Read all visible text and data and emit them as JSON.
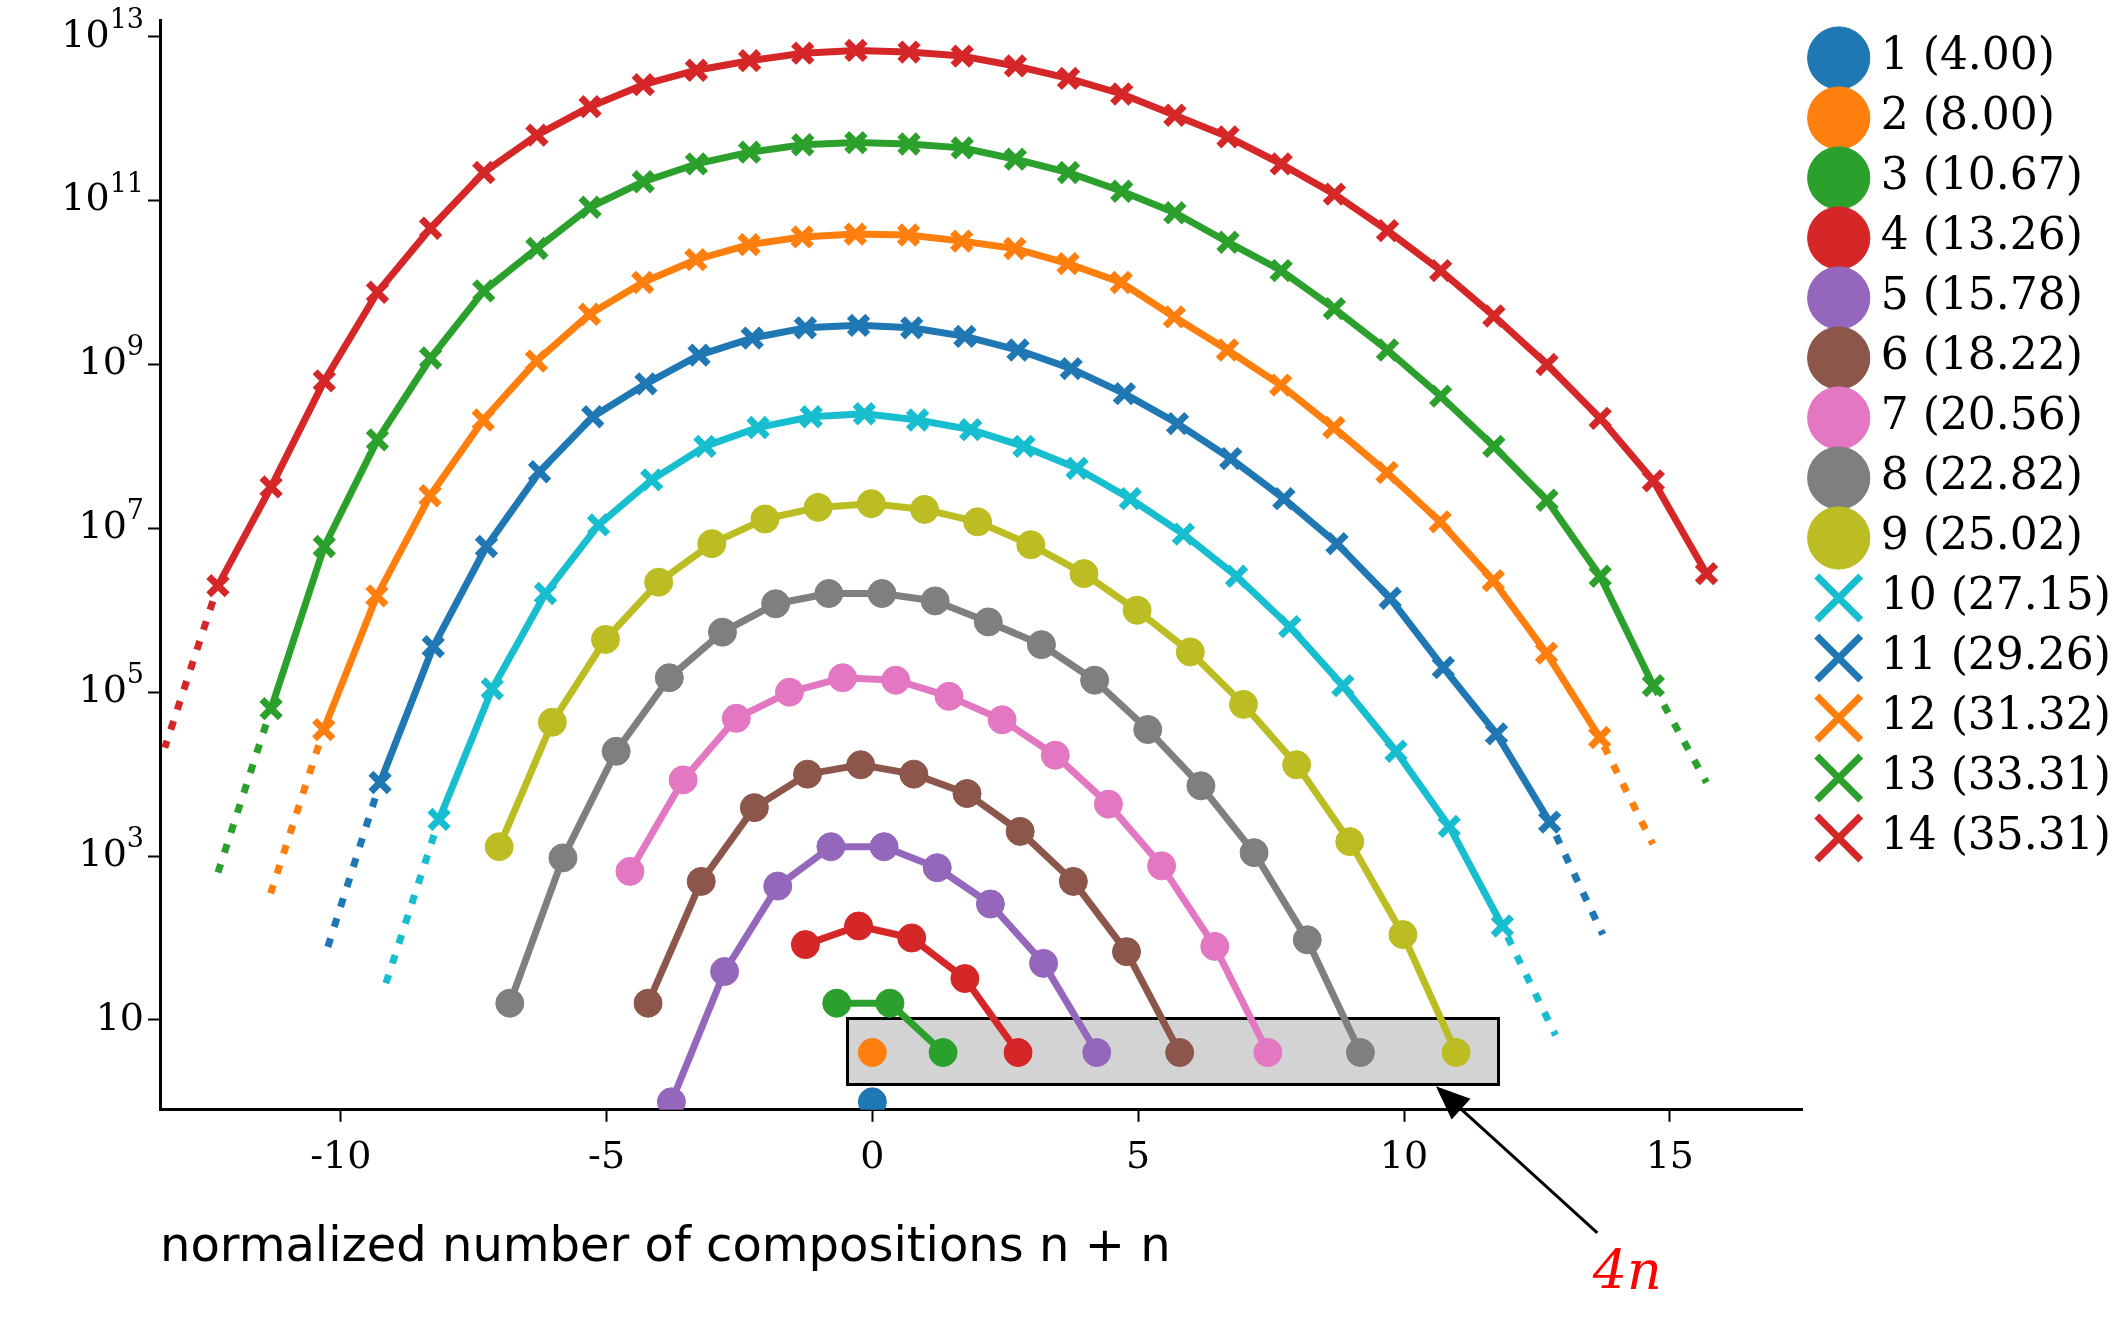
{
  "chart_data": {
    "type": "line",
    "xlabel": "normalized number of compositions n + n",
    "log": "y",
    "legend": "right",
    "line_style": "solid",
    "xlim": [
      -13.4,
      17.5
    ],
    "xticks": [
      -10,
      -5,
      0,
      5,
      10,
      15
    ],
    "ylim": [
      0.8,
      16000000000000.0
    ],
    "yticks": [
      {
        "value": 10,
        "label": "10"
      },
      {
        "value": 1000,
        "label": "10$^{3}$"
      },
      {
        "value": 100000.0,
        "label": "10$^{5}$"
      },
      {
        "value": 10000000.0,
        "label": "10$^{7}$"
      },
      {
        "value": 1000000000.0,
        "label": "10$^{9}$"
      },
      {
        "value": 100000000000.0,
        "label": "10$^{11}$"
      },
      {
        "value": 10000000000000.0,
        "label": "10$^{13}$"
      }
    ],
    "annotations": [
      "4n"
    ],
    "series": [
      {
        "name": "1 (4.00)",
        "color": "#1f77b4",
        "marker": "circle",
        "x": [
          0
        ],
        "values": [
          1
        ]
      },
      {
        "name": "2 (8.00)",
        "color": "#ff7f0e",
        "marker": "circle",
        "x": [
          0
        ],
        "values": [
          4
        ]
      },
      {
        "name": "3 (10.67)",
        "color": "#2ca02c",
        "marker": "circle",
        "x": [
          -0.67,
          0.33,
          1.33
        ],
        "values": [
          16,
          16,
          4
        ]
      },
      {
        "name": "4 (13.26)",
        "color": "#d62728",
        "marker": "circle",
        "x": [
          -1.26,
          -0.26,
          0.74,
          1.74,
          2.74
        ],
        "values": [
          83,
          140,
          100,
          32,
          4
        ]
      },
      {
        "name": "5 (15.78)",
        "color": "#9467bd",
        "marker": "circle",
        "x": [
          -3.78,
          -2.78,
          -1.78,
          -0.78,
          0.22,
          1.22,
          2.22,
          3.22,
          4.22
        ],
        "values": [
          1,
          39,
          430,
          1300.0,
          1300.0,
          720,
          260,
          49,
          4
        ]
      },
      {
        "name": "6 (18.22)",
        "color": "#8c564b",
        "marker": "circle",
        "x": [
          -4.22,
          -3.22,
          -2.22,
          -1.22,
          -0.22,
          0.78,
          1.78,
          2.78,
          3.78,
          4.78,
          5.78
        ],
        "values": [
          16,
          490,
          3900.0,
          10000.0,
          13000.0,
          10000.0,
          5800.0,
          2000.0,
          490,
          68,
          4
        ]
      },
      {
        "name": "7 (20.56)",
        "color": "#e377c2",
        "marker": "circle",
        "x": [
          -4.56,
          -3.56,
          -2.56,
          -1.56,
          -0.56,
          0.44,
          1.44,
          2.44,
          3.44,
          4.44,
          5.44,
          6.44,
          7.44
        ],
        "values": [
          650,
          8500.0,
          48000.0,
          100000.0,
          150000.0,
          140000.0,
          89000.0,
          46000.0,
          17000.0,
          4300.0,
          760,
          79,
          4
        ]
      },
      {
        "name": "8 (22.82)",
        "color": "#7f7f7f",
        "marker": "circle",
        "x": [
          -6.82,
          -5.82,
          -4.82,
          -3.82,
          -2.82,
          -1.82,
          -0.82,
          0.18,
          1.18,
          2.18,
          3.18,
          4.18,
          5.18,
          6.18,
          7.18,
          8.18,
          9.18
        ],
        "values": [
          16,
          950,
          19000.0,
          150000.0,
          540000.0,
          1200000.0,
          1600000.0,
          1600000.0,
          1300000.0,
          720000.0,
          380000.0,
          140000.0,
          35000.0,
          7200.0,
          1100.0,
          95,
          4
        ]
      },
      {
        "name": "9 (25.02)",
        "color": "#bcbd22",
        "marker": "circle",
        "x": [
          -7.02,
          -6.02,
          -5.02,
          -4.02,
          -3.02,
          -2.02,
          -1.02,
          -0.02,
          0.98,
          1.98,
          2.98,
          3.98,
          4.98,
          5.98,
          6.98,
          7.98,
          8.98,
          9.98,
          10.98
        ],
        "values": [
          1300.0,
          43000.0,
          440000.0,
          2200000.0,
          6500000.0,
          13000000.0,
          18000000.0,
          20000000.0,
          17000000.0,
          12000000.0,
          6300000.0,
          2800000.0,
          1000000.0,
          310000.0,
          71000.0,
          13000.0,
          1500.0,
          110,
          4
        ]
      },
      {
        "name": "10 (27.15)",
        "color": "#17becf",
        "marker": "cross",
        "x": [
          -8.15,
          -7.15,
          -6.15,
          -5.15,
          -4.15,
          -3.15,
          -2.15,
          -1.15,
          -0.15,
          0.85,
          1.85,
          2.85,
          3.85,
          4.85,
          5.85,
          6.85,
          7.85,
          8.85,
          9.85,
          10.85,
          11.85
        ],
        "values": [
          2800.0,
          110000.0,
          1600000.0,
          11000000.0,
          39000000.0,
          100000000.0,
          170000000.0,
          230000000.0,
          250000000.0,
          210000000.0,
          160000000.0,
          100000000.0,
          54000000.0,
          23000000.0,
          8500000.0,
          2600000.0,
          630000.0,
          120000.0,
          19000.0,
          2300.0,
          140
        ]
      },
      {
        "name": "11 (29.26)",
        "color": "#1f77b4",
        "marker": "cross",
        "x": [
          -9.26,
          -8.26,
          -7.26,
          -6.26,
          -5.26,
          -4.26,
          -3.26,
          -2.26,
          -1.26,
          -0.26,
          0.74,
          1.74,
          2.74,
          3.74,
          4.74,
          5.74,
          6.74,
          7.74,
          8.74,
          9.74,
          10.74,
          11.74,
          12.74
        ],
        "values": [
          7900.0,
          360000.0,
          6000000.0,
          49000000.0,
          230000000.0,
          580000000.0,
          1300000000.0,
          2100000000.0,
          2800000000.0,
          3000000000.0,
          2800000000.0,
          2200000000.0,
          1500000000.0,
          890000000.0,
          440000000.0,
          190000000.0,
          71000000.0,
          23000000.0,
          6500000.0,
          1400000.0,
          200000.0,
          31000.0,
          2600.0
        ]
      },
      {
        "name": "12 (31.32)",
        "color": "#ff7f0e",
        "marker": "cross",
        "x": [
          -10.32,
          -9.32,
          -8.32,
          -7.32,
          -6.32,
          -5.32,
          -4.32,
          -3.32,
          -2.32,
          -1.32,
          -0.32,
          0.68,
          1.68,
          2.68,
          3.68,
          4.68,
          5.68,
          6.68,
          7.68,
          8.68,
          9.68,
          10.68,
          11.68,
          12.68,
          13.68
        ],
        "values": [
          35000.0,
          1500000.0,
          25000000.0,
          210000000.0,
          1100000000.0,
          4100000000.0,
          10000000000.0,
          19000000000.0,
          29000000000.0,
          36000000000.0,
          39000000000.0,
          38000000000.0,
          32000000000.0,
          26000000000.0,
          17000000000.0,
          10000000000.0,
          3800000000.0,
          1500000000.0,
          560000000.0,
          170000000.0,
          48000000.0,
          12000000.0,
          2300000.0,
          300000.0,
          28000.0
        ]
      },
      {
        "name": "13 (33.31)",
        "color": "#2ca02c",
        "marker": "cross",
        "x": [
          -11.31,
          -10.31,
          -9.31,
          -8.31,
          -7.31,
          -6.31,
          -5.31,
          -4.31,
          -3.31,
          -2.31,
          -1.31,
          -0.31,
          0.69,
          1.69,
          2.69,
          3.69,
          4.69,
          5.69,
          6.69,
          7.69,
          8.69,
          9.69,
          10.69,
          11.69,
          12.69,
          13.69,
          14.69
        ],
        "values": [
          63000.0,
          6000000.0,
          120000000.0,
          1200000000.0,
          7900000000.0,
          26000000000.0,
          83000000000.0,
          170000000000.0,
          280000000000.0,
          390000000000.0,
          480000000000.0,
          510000000000.0,
          490000000000.0,
          440000000000.0,
          320000000000.0,
          220000000000.0,
          130000000000.0,
          71000000000.0,
          31000000000.0,
          14000000000.0,
          4800000000.0,
          1500000000.0,
          410000000.0,
          100000000.0,
          22000000.0,
          2600000.0,
          120000.0
        ]
      },
      {
        "name": "14 (35.31)",
        "color": "#d62728",
        "marker": "cross",
        "x": [
          -12.31,
          -11.31,
          -10.31,
          -9.31,
          -8.31,
          -7.31,
          -6.31,
          -5.31,
          -4.31,
          -3.31,
          -2.31,
          -1.31,
          -0.31,
          0.69,
          1.69,
          2.69,
          3.69,
          4.69,
          5.69,
          6.69,
          7.69,
          8.69,
          9.69,
          10.69,
          11.69,
          12.69,
          13.69,
          14.69,
          15.69
        ],
        "values": [
          2000000.0,
          32000000.0,
          630000000.0,
          7600000000.0,
          46000000000.0,
          220000000000.0,
          630000000000.0,
          1400000000000.0,
          2600000000000.0,
          3900000000000.0,
          5100000000000.0,
          6300000000000.0,
          6800000000000.0,
          6500000000000.0,
          5800000000000.0,
          4400000000000.0,
          3100000000000.0,
          2000000000000.0,
          1100000000000.0,
          600000000000.0,
          280000000000.0,
          120000000000.0,
          43000000000.0,
          14000000000.0,
          3900000000.0,
          1000000000.0,
          220000000.0,
          38000000.0,
          2800000.0
        ]
      },
      {
        "color": "#17becf",
        "marker": "none",
        "line_style": "dotted",
        "x": [
          -9.15,
          -8.15
        ],
        "values": [
          28,
          2800.0
        ]
      },
      {
        "color": "#17becf",
        "marker": "none",
        "line_style": "dotted",
        "x": [
          11.85,
          12.85
        ],
        "values": [
          140,
          6.5
        ]
      },
      {
        "color": "#1f77b4",
        "marker": "none",
        "line_style": "dotted",
        "x": [
          -10.26,
          -9.26
        ],
        "values": [
          72,
          7900.0
        ]
      },
      {
        "color": "#1f77b4",
        "marker": "none",
        "line_style": "dotted",
        "x": [
          12.74,
          13.74
        ],
        "values": [
          2600.0,
          110
        ]
      },
      {
        "color": "#ff7f0e",
        "marker": "none",
        "line_style": "dotted",
        "x": [
          -11.32,
          -10.32
        ],
        "values": [
          350,
          35000.0
        ]
      },
      {
        "color": "#ff7f0e",
        "marker": "none",
        "line_style": "dotted",
        "x": [
          13.68,
          14.68
        ],
        "values": [
          28000.0,
          1400.0
        ]
      },
      {
        "color": "#2ca02c",
        "marker": "none",
        "line_style": "dotted",
        "x": [
          -12.31,
          -11.31
        ],
        "values": [
          630,
          63000.0
        ]
      },
      {
        "color": "#2ca02c",
        "marker": "none",
        "line_style": "dotted",
        "x": [
          14.69,
          15.69
        ],
        "values": [
          120000.0,
          7900.0
        ]
      },
      {
        "color": "#d62728",
        "marker": "none",
        "line_style": "dotted",
        "x": [
          -13.31,
          -12.31
        ],
        "values": [
          21000.0,
          2000000.0
        ]
      }
    ]
  }
}
